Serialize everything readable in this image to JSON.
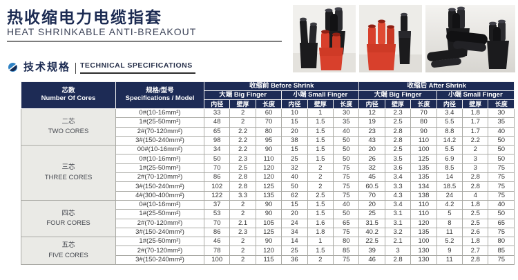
{
  "page": {
    "title_zh": "热收缩电力电缆指套",
    "title_en": "HEAT SHRINKABLE ANTI-BREAKOUT",
    "section_zh": "技术规格",
    "section_en": "TECHNICAL SPECIFICATIONS"
  },
  "colors": {
    "header_navy": "#1d2b55",
    "title_navy": "#1c2b52",
    "accent_blue": "#2e82c4",
    "group_gray": "#eaeae6",
    "product_red": "#d8402c",
    "product_black": "#1c1c1e"
  },
  "table": {
    "header": {
      "cores_zh": "芯数",
      "cores_en": "Number Of Cores",
      "spec_zh": "规格/型号",
      "spec_en": "Specifications / Model",
      "before": "收缩前 Before Shrink",
      "after": "收缩后 After Shrink",
      "big": "大端 Big Finger",
      "small": "小端 Small Finger",
      "sub": [
        "内径",
        "壁厚",
        "长度"
      ]
    },
    "groups": [
      {
        "label_zh": "二芯",
        "label_en": "TWO CORES",
        "rows": [
          {
            "model": "0#(10-16mm²)",
            "values": [
              33,
              2,
              60,
              10,
              1,
              30,
              12,
              2.3,
              70,
              3.4,
              1.8,
              30
            ]
          },
          {
            "model": "1#(25-50mm²)",
            "values": [
              48,
              2,
              70,
              15,
              1.5,
              35,
              19,
              2.5,
              80,
              5.5,
              1.7,
              35
            ]
          },
          {
            "model": "2#(70-120mm²)",
            "values": [
              65,
              2.2,
              80,
              20,
              1.5,
              40,
              23,
              2.8,
              90,
              8.8,
              1.7,
              40
            ]
          },
          {
            "model": "3#(150-240mm²)",
            "values": [
              98,
              2.2,
              95,
              38,
              1.5,
              50,
              43,
              2.8,
              110,
              14.2,
              2.2,
              50
            ]
          }
        ]
      },
      {
        "label_zh": "三芯",
        "label_en": "THREE CORES",
        "rows": [
          {
            "model": "00#(10-16mm²)",
            "values": [
              34,
              2.2,
              90,
              15,
              1.5,
              50,
              20,
              2.5,
              100,
              5.5,
              2,
              50
            ]
          },
          {
            "model": "0#(10-16mm²)",
            "values": [
              50,
              2.3,
              110,
              25,
              1.5,
              50,
              26,
              3.5,
              125,
              6.9,
              3,
              50
            ]
          },
          {
            "model": "1#(25-50mm²)",
            "values": [
              70,
              2.5,
              120,
              32,
              2,
              75,
              32,
              3.6,
              135,
              8.5,
              3,
              75
            ]
          },
          {
            "model": "2#(70-120mm²)",
            "values": [
              86,
              2.8,
              120,
              40,
              2,
              75,
              45,
              3.4,
              135,
              14,
              2.8,
              75
            ]
          },
          {
            "model": "3#(150-240mm²)",
            "values": [
              102,
              2.8,
              125,
              50,
              2,
              75,
              60.5,
              3.3,
              134,
              18.5,
              2.8,
              75
            ]
          },
          {
            "model": "4#(300-400mm²)",
            "values": [
              122,
              3.3,
              135,
              62,
              2.5,
              75,
              70,
              4.3,
              138,
              24,
              4,
              75
            ]
          }
        ]
      },
      {
        "label_zh": "四芯",
        "label_en": "FOUR CORES",
        "rows": [
          {
            "model": "0#(10-16mm²)",
            "values": [
              37,
              2,
              90,
              15,
              1.5,
              40,
              20,
              3.4,
              110,
              4.2,
              1.8,
              40
            ]
          },
          {
            "model": "1#(25-50mm²)",
            "values": [
              53,
              2,
              90,
              20,
              1.5,
              50,
              25,
              3.1,
              110,
              5,
              2.5,
              50
            ]
          },
          {
            "model": "2#(70-120mm²)",
            "values": [
              70,
              2.1,
              105,
              24,
              1.6,
              65,
              31.5,
              3.1,
              120,
              8,
              2.5,
              65
            ]
          },
          {
            "model": "3#(150-240mm²)",
            "values": [
              86,
              2.3,
              125,
              34,
              1.8,
              75,
              40.2,
              3.2,
              135,
              11,
              2.6,
              75
            ]
          }
        ]
      },
      {
        "label_zh": "五芯",
        "label_en": "FIVE CORES",
        "rows": [
          {
            "model": "1#(25-50mm²)",
            "values": [
              46,
              2,
              90,
              14,
              1,
              80,
              22.5,
              2.1,
              100,
              5.2,
              1.8,
              80
            ]
          },
          {
            "model": "2#(70-120mm²)",
            "values": [
              78,
              2,
              120,
              25,
              1.5,
              85,
              39,
              3,
              130,
              9,
              2.7,
              85
            ]
          },
          {
            "model": "3#(150-240mm²)",
            "values": [
              100,
              2,
              115,
              36,
              2,
              75,
              46,
              2.8,
              130,
              11,
              2.8,
              75
            ]
          }
        ]
      }
    ]
  }
}
